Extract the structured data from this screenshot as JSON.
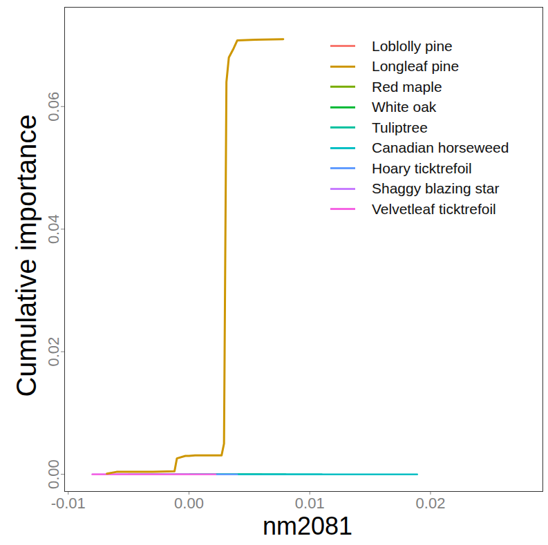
{
  "chart_data": {
    "type": "line",
    "xlabel": "nm2081",
    "ylabel": "Cumulative importance",
    "xlim": [
      -0.0103,
      0.0293
    ],
    "ylim": [
      -0.0028,
      0.0762
    ],
    "xticks": [
      {
        "value": -0.01,
        "label": "-0.01"
      },
      {
        "value": 0,
        "label": "0.00"
      },
      {
        "value": 0.01,
        "label": "0.01"
      },
      {
        "value": 0.02,
        "label": "0.02"
      }
    ],
    "yticks": [
      {
        "value": 0,
        "label": "0.00"
      },
      {
        "value": 0.02,
        "label": "0.02"
      },
      {
        "value": 0.04,
        "label": "0.04"
      },
      {
        "value": 0.06,
        "label": "0.06"
      }
    ],
    "legend": "top-right",
    "grid": false,
    "series": [
      {
        "name": "Loblolly pine",
        "color": "#F8766D",
        "x": [
          -0.0031,
          0.0024
        ],
        "values": [
          0,
          0
        ]
      },
      {
        "name": "Longleaf pine",
        "color": "#CD9600",
        "x": [
          -0.0068,
          -0.006,
          -0.003,
          -0.0012,
          -0.001,
          -0.0003,
          0.0,
          0.0005,
          0.0015,
          0.0027,
          0.0029,
          0.0031,
          0.0033,
          0.0037,
          0.004,
          0.0055,
          0.0078
        ],
        "values": [
          0.0001,
          0.0004,
          0.0004,
          0.0005,
          0.0026,
          0.003,
          0.003,
          0.0031,
          0.0031,
          0.0031,
          0.005,
          0.064,
          0.068,
          0.0695,
          0.0708,
          0.0709,
          0.071
        ]
      },
      {
        "name": "Red maple",
        "color": "#7CAE00",
        "x": [
          -0.005,
          0.006
        ],
        "values": [
          0,
          0
        ]
      },
      {
        "name": "White oak",
        "color": "#00BA38",
        "x": [
          -0.004,
          0.008
        ],
        "values": [
          0,
          0
        ]
      },
      {
        "name": "Tuliptree",
        "color": "#00C19F",
        "x": [
          -0.002,
          0.011
        ],
        "values": [
          0,
          0
        ]
      },
      {
        "name": "Canadian horseweed",
        "color": "#00BFC4",
        "x": [
          0.0024,
          0.0189
        ],
        "values": [
          0,
          0
        ]
      },
      {
        "name": "Hoary ticktrefoil",
        "color": "#619CFF",
        "x": [
          -0.006,
          0.004
        ],
        "values": [
          0,
          0
        ]
      },
      {
        "name": "Shaggy blazing star",
        "color": "#C77CFF",
        "x": [
          -0.008,
          0.0
        ],
        "values": [
          0,
          0
        ]
      },
      {
        "name": "Velvetleaf ticktrefoil",
        "color": "#F564E3",
        "x": [
          -0.008,
          0.0022
        ],
        "values": [
          0,
          0
        ]
      }
    ]
  }
}
